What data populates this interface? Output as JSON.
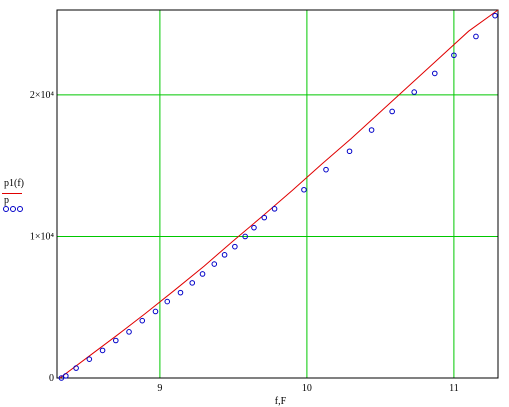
{
  "chart_data": {
    "type": "line",
    "xlabel": "f,F",
    "ylabel_top": "p1(f)",
    "ylabel_bottom": "p",
    "xlim": [
      8.3,
      11.3
    ],
    "ylim": [
      0,
      26000
    ],
    "x_ticks": [
      9,
      10,
      11
    ],
    "x_tick_labels": [
      "9",
      "10",
      "11"
    ],
    "y_ticks": [
      0,
      10000,
      20000
    ],
    "y_tick_labels": [
      "0",
      "1×10⁴",
      "2×10⁴"
    ],
    "grid": true,
    "colors": {
      "grid": "#00c800",
      "line": "#e00000",
      "marker": "#0000c8",
      "frame": "#000000"
    },
    "series": [
      {
        "name": "p1(f)",
        "style": "line",
        "x": [
          8.32,
          8.5,
          8.7,
          8.9,
          9.1,
          9.3,
          9.5,
          9.7,
          9.9,
          10.1,
          10.3,
          10.5,
          10.7,
          10.9,
          11.1,
          11.3
        ],
        "y": [
          0,
          1400,
          2950,
          4550,
          6200,
          7900,
          9700,
          11450,
          13250,
          15100,
          16900,
          18800,
          20700,
          22600,
          24500,
          26000
        ]
      },
      {
        "name": "p",
        "style": "markers",
        "x": [
          8.33,
          8.36,
          8.43,
          8.52,
          8.61,
          8.7,
          8.79,
          8.88,
          8.97,
          9.05,
          9.14,
          9.22,
          9.29,
          9.37,
          9.44,
          9.51,
          9.58,
          9.64,
          9.71,
          9.78,
          9.98,
          10.13,
          10.29,
          10.44,
          10.58,
          10.73,
          10.87,
          11.0,
          11.15,
          11.28
        ],
        "y": [
          0,
          150,
          700,
          1330,
          1950,
          2650,
          3260,
          4050,
          4700,
          5400,
          6030,
          6720,
          7350,
          8050,
          8700,
          9280,
          10000,
          10620,
          11330,
          11950,
          13300,
          14720,
          16020,
          17520,
          18830,
          20200,
          21520,
          22800,
          24130,
          25600
        ]
      }
    ]
  }
}
